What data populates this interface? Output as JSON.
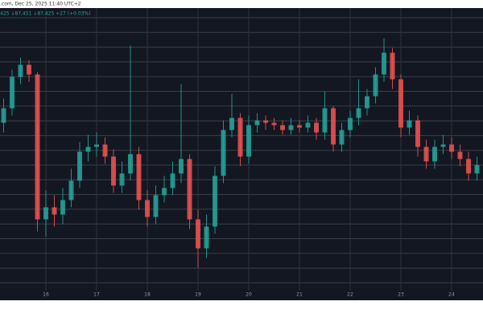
{
  "chart_data": {
    "type": "candlestick",
    "title": ".com, Dec 25, 2025 11:40 UTC+2",
    "subtitle": "425 ↓87,451 ↓87,425 +27 (+0.03%)",
    "categories": [
      null,
      null,
      null,
      null,
      null,
      "16",
      null,
      null,
      null,
      null,
      null,
      "17",
      null,
      null,
      null,
      null,
      null,
      "18",
      null,
      null,
      null,
      null,
      null,
      "19",
      null,
      null,
      null,
      null,
      null,
      "20",
      null,
      null,
      null,
      null,
      null,
      "21",
      null,
      null,
      null,
      null,
      null,
      "22",
      null,
      null,
      null,
      null,
      null,
      "23",
      null,
      null,
      null,
      null,
      null,
      "24",
      null,
      null,
      null
    ],
    "open": [
      88300,
      88600,
      89250,
      89500,
      89300,
      86300,
      86550,
      86400,
      86700,
      87100,
      87700,
      87800,
      87850,
      87600,
      87000,
      87250,
      87650,
      86700,
      86350,
      86800,
      86950,
      87250,
      87550,
      86300,
      85700,
      86150,
      87200,
      88150,
      88400,
      87600,
      88250,
      88350,
      88300,
      88250,
      88150,
      88250,
      88200,
      88300,
      88100,
      88600,
      87850,
      88150,
      88400,
      88600,
      88850,
      89300,
      89750,
      89200,
      88200,
      88350,
      87800,
      87500,
      87800,
      87850,
      87700,
      87550,
      87250
    ],
    "high": [
      88800,
      89400,
      89650,
      89600,
      89350,
      86900,
      86800,
      86950,
      87350,
      87900,
      88050,
      88100,
      88000,
      87750,
      87500,
      89900,
      87800,
      86900,
      87000,
      87200,
      87500,
      89100,
      87650,
      86500,
      86400,
      87400,
      88350,
      88900,
      88500,
      88450,
      88500,
      88450,
      88400,
      88350,
      88400,
      88350,
      88450,
      88400,
      88950,
      88650,
      88300,
      88550,
      89200,
      89000,
      89450,
      90050,
      89850,
      89300,
      88550,
      88450,
      87950,
      87950,
      88050,
      88000,
      87850,
      87700,
      87600
    ],
    "low": [
      88100,
      88450,
      89100,
      89150,
      86050,
      85950,
      86150,
      86200,
      86550,
      86950,
      87500,
      87600,
      87450,
      86850,
      86850,
      87100,
      86500,
      86150,
      86200,
      86650,
      86800,
      87050,
      86100,
      85300,
      85500,
      86000,
      87050,
      88000,
      87400,
      87450,
      88100,
      88150,
      88150,
      88050,
      88050,
      88100,
      88100,
      87950,
      87950,
      87700,
      87700,
      88000,
      88250,
      88450,
      88700,
      89150,
      89000,
      88000,
      88050,
      87600,
      87350,
      87350,
      87650,
      87550,
      87400,
      87100,
      87100
    ],
    "close": [
      88600,
      89250,
      89500,
      89300,
      86300,
      86550,
      86400,
      86700,
      87100,
      87700,
      87800,
      87850,
      87600,
      87000,
      87250,
      87650,
      86700,
      86350,
      86800,
      86950,
      87250,
      87550,
      86300,
      85700,
      86150,
      87200,
      88150,
      88400,
      87600,
      88250,
      88350,
      88300,
      88250,
      88150,
      88250,
      88200,
      88300,
      88100,
      88600,
      87850,
      88150,
      88400,
      88600,
      88850,
      89300,
      89750,
      89200,
      88200,
      88350,
      87800,
      87500,
      87800,
      87850,
      87700,
      87550,
      87250,
      87425
    ],
    "up_color": "#26a69a",
    "down_color": "#ef5350",
    "ylim": [
      84675,
      90475
    ],
    "grid": true
  }
}
